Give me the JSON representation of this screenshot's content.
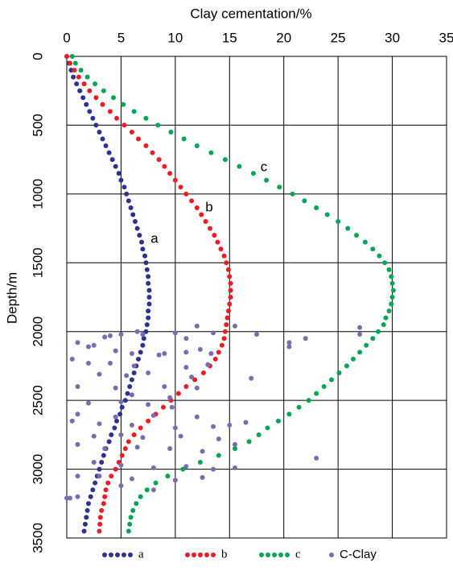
{
  "chart_data": {
    "type": "scatter",
    "title": "Clay cementation/%",
    "y_label": "Depth/m",
    "xlim": [
      0,
      35
    ],
    "xticks": [
      0,
      5,
      10,
      15,
      20,
      25,
      30,
      35
    ],
    "ylim": [
      0,
      3500
    ],
    "yticks": [
      0,
      500,
      1000,
      1500,
      2000,
      2500,
      3000,
      3500
    ],
    "y_inverted": true,
    "x_axis_position": "top",
    "grid": true,
    "y": [
      0,
      50,
      100,
      150,
      200,
      250,
      300,
      350,
      400,
      450,
      500,
      550,
      600,
      650,
      700,
      750,
      800,
      850,
      900,
      950,
      1000,
      1050,
      1100,
      1150,
      1200,
      1250,
      1300,
      1350,
      1400,
      1450,
      1500,
      1550,
      1600,
      1650,
      1700,
      1750,
      1800,
      1850,
      1900,
      1950,
      2000,
      2050,
      2100,
      2150,
      2200,
      2250,
      2300,
      2350,
      2400,
      2450,
      2500,
      2550,
      2600,
      2650,
      2700,
      2750,
      2800,
      2850,
      2900,
      2950,
      3000,
      3050,
      3100,
      3150,
      3200,
      3250,
      3300,
      3350,
      3400,
      3450
    ],
    "series": [
      {
        "name": "a",
        "color": "#2e3192",
        "values": [
          0,
          0.2,
          0.4,
          0.6,
          0.9,
          1.2,
          1.5,
          1.8,
          2.1,
          2.4,
          2.7,
          3.0,
          3.3,
          3.6,
          3.9,
          4.2,
          4.5,
          4.8,
          5.0,
          5.3,
          5.5,
          5.7,
          5.9,
          6.1,
          6.3,
          6.5,
          6.7,
          6.9,
          7.0,
          7.2,
          7.3,
          7.4,
          7.5,
          7.5,
          7.6,
          7.6,
          7.6,
          7.5,
          7.5,
          7.4,
          7.3,
          7.1,
          7.0,
          6.8,
          6.6,
          6.4,
          6.2,
          6.0,
          5.8,
          5.6,
          5.4,
          5.1,
          4.9,
          4.6,
          4.4,
          4.1,
          3.9,
          3.6,
          3.4,
          3.2,
          3.0,
          2.8,
          2.6,
          2.4,
          2.2,
          2.0,
          1.9,
          1.8,
          1.7,
          1.6
        ]
      },
      {
        "name": "b",
        "color": "#ed1c24",
        "values": [
          0,
          0.3,
          0.7,
          1.1,
          1.6,
          2.1,
          2.7,
          3.3,
          4.0,
          4.6,
          5.3,
          6.0,
          6.6,
          7.3,
          7.9,
          8.5,
          9.0,
          9.5,
          10.0,
          10.5,
          11.0,
          11.5,
          12.0,
          12.4,
          12.8,
          13.2,
          13.6,
          13.9,
          14.2,
          14.5,
          14.7,
          14.9,
          15.0,
          15.1,
          15.1,
          15.1,
          15.0,
          14.9,
          14.8,
          14.7,
          14.6,
          14.5,
          14.3,
          14.0,
          13.7,
          13.2,
          12.6,
          11.8,
          11.0,
          10.3,
          9.6,
          8.9,
          8.2,
          7.5,
          6.8,
          6.2,
          5.7,
          5.4,
          5.1,
          4.8,
          4.5,
          4.1,
          3.8,
          3.6,
          3.5,
          3.4,
          3.2,
          3.1,
          3.05,
          3.0
        ]
      },
      {
        "name": "c",
        "color": "#00a651",
        "values": [
          0.5,
          0.8,
          1.3,
          1.9,
          2.6,
          3.4,
          4.3,
          5.2,
          6.2,
          7.3,
          8.4,
          9.6,
          10.8,
          12.0,
          13.3,
          14.6,
          15.9,
          17.2,
          18.4,
          19.6,
          20.8,
          21.9,
          23.0,
          24.0,
          25.0,
          25.9,
          26.7,
          27.5,
          28.2,
          28.8,
          29.3,
          29.7,
          29.9,
          30.0,
          30.1,
          30.0,
          29.9,
          29.7,
          29.4,
          29.2,
          28.7,
          28.2,
          27.6,
          27.0,
          26.4,
          25.8,
          25.1,
          24.4,
          23.7,
          23.0,
          22.3,
          21.4,
          20.5,
          19.5,
          18.5,
          17.7,
          16.8,
          15.5,
          14.0,
          12.3,
          10.7,
          9.3,
          8.2,
          7.4,
          6.8,
          6.4,
          6.1,
          5.9,
          5.8,
          5.7
        ]
      },
      {
        "name": "C-Clay",
        "color": "#7b6bb0",
        "x": [
          7.0,
          5.0,
          6.5,
          4.0,
          3.5,
          10,
          12,
          13.5,
          11,
          15.5,
          17.5,
          20.5,
          20.5,
          22,
          27,
          27,
          1,
          2,
          2.5,
          4.5,
          6,
          8.5,
          9,
          11,
          12.3,
          13.3,
          0.5,
          2,
          4,
          6.2,
          11,
          13,
          3,
          5.5,
          7.5,
          11.5,
          17,
          1,
          4.5,
          9,
          12,
          6,
          9.5,
          2,
          5,
          7.5,
          9.7,
          1,
          4.5,
          8,
          12,
          0.5,
          3,
          6,
          10,
          13.5,
          15,
          16.5,
          2.5,
          5,
          7,
          10.5,
          14,
          1,
          3.5,
          6.5,
          9.5,
          12.5,
          15.5,
          23,
          2.5,
          5,
          8,
          11,
          13.5,
          15.5,
          1,
          3,
          6,
          10,
          12.5,
          0,
          0.3,
          1,
          5,
          8
        ],
        "y": [
          2020,
          2020,
          2000,
          2030,
          2040,
          2010,
          1960,
          2010,
          2050,
          1960,
          2020,
          2080,
          2110,
          2050,
          1970,
          2020,
          2080,
          2110,
          2100,
          2140,
          2160,
          2170,
          2160,
          2150,
          2130,
          2160,
          2200,
          2230,
          2230,
          2250,
          2260,
          2240,
          2310,
          2320,
          2300,
          2330,
          2340,
          2400,
          2410,
          2400,
          2410,
          2460,
          2480,
          2520,
          2510,
          2530,
          2550,
          2600,
          2620,
          2610,
          2620,
          2650,
          2670,
          2680,
          2700,
          2690,
          2680,
          2660,
          2760,
          2750,
          2770,
          2760,
          2780,
          2820,
          2850,
          2840,
          2850,
          2870,
          2820,
          2920,
          2950,
          2970,
          2990,
          2980,
          3000,
          2990,
          3050,
          3050,
          3070,
          3080,
          3060,
          3210,
          3210,
          3200,
          3120,
          3150
        ]
      }
    ],
    "annotations": [
      "a",
      "b",
      "c"
    ]
  }
}
